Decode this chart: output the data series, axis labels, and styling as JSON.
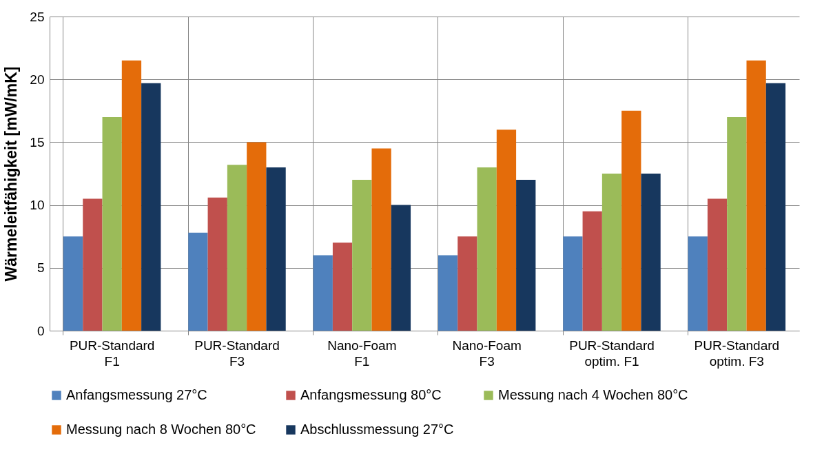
{
  "chart_data": {
    "type": "bar",
    "categories": [
      "PUR-Standard\nF1",
      "PUR-Standard\nF3",
      "Nano-Foam\nF1",
      "Nano-Foam\nF3",
      "PUR-Standard\noptim. F1",
      "PUR-Standard\noptim. F3"
    ],
    "ylabel": "Wärmeleitfähigkeit [mW/mK]",
    "ylim": [
      0,
      25
    ],
    "yticks": [
      0,
      5,
      10,
      15,
      20,
      25
    ],
    "grid": true,
    "legend": "bottom",
    "series": [
      {
        "name": "Anfangsmessung 27°C",
        "color": "#4f81bd",
        "values": [
          7.5,
          7.8,
          6,
          6,
          7.5,
          7.5
        ]
      },
      {
        "name": "Anfangsmessung 80°C",
        "color": "#c0504d",
        "values": [
          10.5,
          10.6,
          7,
          7.5,
          9.5,
          10.5
        ]
      },
      {
        "name": "Messung nach 4 Wochen 80°C",
        "color": "#9bbb59",
        "values": [
          17,
          13.2,
          12,
          13,
          12.5,
          17
        ]
      },
      {
        "name": "Messung nach 8 Wochen 80°C",
        "color": "#e46c0a",
        "values": [
          21.5,
          15,
          14.5,
          16,
          17.5,
          21.5
        ]
      },
      {
        "name": "Abschlussmessung 27°C",
        "color": "#17375e",
        "values": [
          19.7,
          13,
          10,
          12,
          12.5,
          19.7
        ]
      }
    ]
  }
}
